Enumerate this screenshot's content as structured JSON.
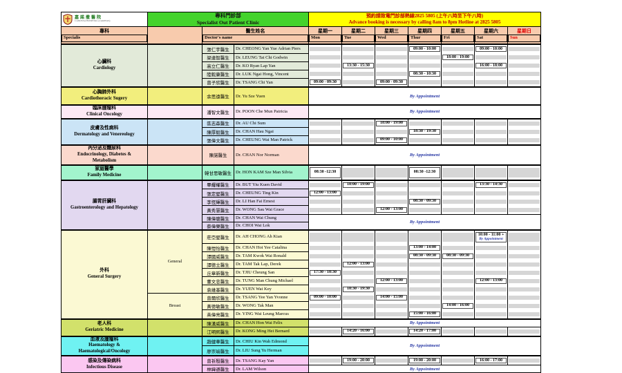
{
  "logo": {
    "zh": "嘉諾撒醫院",
    "en": "CANOSSA HOSPITAL (CARITAS)"
  },
  "banners": {
    "clinic_zh": "專科門診部",
    "clinic_en": "Specialist Out Patient Clinic",
    "hotline_zh": "預約請致電門診部熱線2825 5805 (上午八時至下午八時)",
    "hotline_en": "Advance booking is necessary by calling 8am to 8pm Hotline at 2825 5805"
  },
  "headers": {
    "specialty_zh": "專科",
    "specialty_en": "Specialis",
    "doctor_zh": "醫生姓名",
    "doctor_en": "Doctor's name",
    "days": [
      {
        "zh": "星期一",
        "en": "Mon"
      },
      {
        "zh": "星期二",
        "en": "Tue"
      },
      {
        "zh": "星期三",
        "en": "Wed"
      },
      {
        "zh": "星期四",
        "en": "Thur"
      },
      {
        "zh": "星期五",
        "en": "Fri"
      },
      {
        "zh": "星期六",
        "en": "Sat"
      },
      {
        "zh": "星期日",
        "en": "Sun"
      }
    ]
  },
  "by_appointment": "By Appointment",
  "sections": [
    {
      "color": "#e2ead9",
      "name_lines": [
        "心臟科",
        "Cardiology"
      ],
      "groups": [
        {
          "label": "",
          "rows": [
            {
              "zh": "張仁宇醫生",
              "en": "Dr. CHEONG Yan Yue Adrian Piers",
              "days": [
                "",
                "",
                "",
                "09:00 - 10:00",
                "",
                "09:00 - 10:00",
                ""
              ]
            },
            {
              "zh": "梁達智醫生",
              "en": "Dr. LEUNG Tat Chi Godwin",
              "days": [
                "",
                "",
                "",
                "",
                "18:00 - 19:00",
                "",
                ""
              ]
            },
            {
              "zh": "高立仁醫生",
              "en": "Dr. KO Ryan Lap Yan",
              "days": [
                "",
                "13:30 - 15:30",
                "",
                "",
                "",
                "16:00 - 18:00",
                ""
              ]
            },
            {
              "zh": "陸毅康醫生",
              "en": "Dr. LUK Ngai Hong, Vincent",
              "days": [
                "",
                "",
                "",
                "08:30 - 10:30",
                "",
                "",
                ""
              ]
            },
            {
              "zh": "曾子欣醫生",
              "en": "Dr. TSANG Chi Yan",
              "days": [
                "09:00 - 09:30",
                "",
                "09:00 - 09:30",
                "",
                "",
                "",
                ""
              ]
            }
          ]
        }
      ]
    },
    {
      "color": "#f2ee7d",
      "name_lines": [
        "心胸肺外科",
        "Cardiothoracic Sugery"
      ],
      "groups": [
        {
          "label": "",
          "rows": [
            {
              "zh": "余思遠醫生",
              "en": "Dr. Yu Sze Yuen",
              "appt": 1,
              "h": 26
            }
          ]
        }
      ]
    },
    {
      "color": "#fce8f4",
      "name_lines": [
        "臨床腫瘤科",
        "Clinical Oncology"
      ],
      "groups": [
        {
          "label": "",
          "rows": [
            {
              "zh": "潘智文醫生",
              "en": "Dr. POON Che Mun Patricia",
              "appt": 1,
              "h": 19
            }
          ]
        }
      ]
    },
    {
      "color": "#cbe4f6",
      "name_lines": [
        "皮膚及性病科",
        "Dermatology and Venereology"
      ],
      "groups": [
        {
          "label": "",
          "rows": [
            {
              "zh": "區志森醫生",
              "en": "Dr. AU Chi Sum",
              "days": [
                "",
                "",
                "18:00 - 19:00",
                "",
                "",
                "",
                ""
              ]
            },
            {
              "zh": "陳厚毅醫生",
              "en": "Dr. CHAN Hau Ngai",
              "days": [
                "",
                "",
                "",
                "18:30 - 19:30",
                "",
                "",
                ""
              ]
            },
            {
              "zh": "張偉文醫生",
              "en": "Dr. CHEUNG Wai Man Patrick",
              "days": [
                "",
                "",
                "09:00 - 10:00",
                "",
                "",
                "",
                ""
              ]
            }
          ]
        }
      ]
    },
    {
      "color": "#fbd9cd",
      "name_lines": [
        "內分泌及糖尿科",
        "Endocrinology, Diabetes &",
        "Metabolism"
      ],
      "groups": [
        {
          "label": "",
          "rows": [
            {
              "zh": "陳諾醫生",
              "en": "Dr. CHAN Nor Norman",
              "appt": 1,
              "h": 29
            }
          ]
        }
      ]
    },
    {
      "color": "#a2f4cd",
      "name_lines": [
        "家庭醫學",
        "Family Medicine"
      ],
      "groups": [
        {
          "label": "",
          "rows": [
            {
              "zh": "韓甘思敏醫生",
              "en": "Dr. HON KAM Sze Man Silvia",
              "h": 19,
              "days": [
                "08:30 -12:30",
                "",
                "",
                "08:30 -12:30",
                "",
                "",
                ""
              ]
            }
          ]
        }
      ]
    },
    {
      "color": "#e2d8f0",
      "name_lines": [
        "腸胃肝臟科",
        "Gastroenterology and Hepatology"
      ],
      "groups": [
        {
          "label": "",
          "rows": [
            {
              "zh": "畢耀權醫生",
              "en": "Dr. BUT Yiu Kuen David",
              "days": [
                "",
                "18:00 - 19:00",
                "",
                "",
                "",
                "13:30 - 14:30",
                ""
              ]
            },
            {
              "zh": "張定堅醫生",
              "en": "Dr. CHEUNG Ting Kin",
              "days": [
                "12:00 - 13:00",
                "",
                "",
                "",
                "",
                "",
                ""
              ]
            },
            {
              "zh": "李恆輝醫生",
              "en": "Dr. LI Han Fai Ernest",
              "days": [
                "",
                "",
                "",
                "08:30 - 09:30",
                "",
                "",
                ""
              ]
            },
            {
              "zh": "黃秀慧醫生",
              "en": "Dr. WONG Sau Wai Grace",
              "days": [
                "",
                "",
                "12:00 - 13:00",
                "",
                "",
                "",
                ""
              ]
            },
            {
              "zh": "陳偉聰醫生",
              "en": "Dr. CHAN Wai Chung",
              "appt": 2
            },
            {
              "zh": "蔡偉樂醫生",
              "en": "Dr. CHOI Wai Lok",
              "skip": true
            }
          ]
        }
      ]
    },
    {
      "color": "#fbf9d3",
      "name_lines": [
        "外科",
        "General Surgery"
      ],
      "groups": [
        {
          "label": "General",
          "rows": [
            {
              "zh": "莊亞堅醫生",
              "en": "Dr. AH CHONG Ah Kian",
              "h": 18,
              "days": [
                "",
                "",
                "",
                "",
                "",
                {
                  "t": "10:00 - 11:00 +",
                  "sub": "By Appointment"
                },
                ""
              ]
            },
            {
              "zh": "陳愷怡醫生",
              "en": "Dr. CHAN Hoi Yee Catalina",
              "days": [
                "",
                "",
                "",
                "13:00 - 14:00",
                "",
                "",
                ""
              ]
            },
            {
              "zh": "譚國威醫生",
              "en": "Dr. TAM Kwok Wai Ronald",
              "days": [
                "",
                "",
                "",
                "08:30 - 09:30",
                "08:30 - 09:30",
                "",
                ""
              ]
            },
            {
              "zh": "譚德立醫生",
              "en": "Dr. TAM Tak Lap, Derek",
              "days": [
                "",
                "12:00 - 13:00",
                "",
                "",
                "",
                "",
                ""
              ]
            },
            {
              "zh": "丘章新醫生",
              "en": "Dr. TJIU Cheung San",
              "days": [
                "17:30 - 18:30",
                "",
                "",
                "",
                "",
                "",
                ""
              ]
            },
            {
              "zh": "董文忠醫生",
              "en": "Dr. TUNG Man Chung Michael",
              "days": [
                "",
                "",
                "12:00 - 13:00",
                "",
                "",
                "12:00 - 13:00",
                ""
              ]
            },
            {
              "zh": "袁維基醫生",
              "en": "Dr. YUEN Wai Key",
              "days": [
                "",
                "18:30 - 19:30",
                "",
                "",
                "",
                "",
                ""
              ]
            }
          ]
        },
        {
          "label": "Breast",
          "rows": [
            {
              "zh": "曾爾欣醫生",
              "en": "Dr. TSANG Yee Yan Yvonne",
              "days": [
                "09:00 - 10:00",
                "",
                "14:00 - 15:00",
                "",
                "",
                "",
                ""
              ]
            },
            {
              "zh": "黃德敏醫生",
              "en": "Dr. WONG Tak Man",
              "days": [
                "",
                "",
                "",
                "",
                "14:00 - 16:00",
                "",
                ""
              ]
            },
            {
              "zh": "英偉亮醫生",
              "en": "Dr. YING Wai Leung Marcus",
              "days": [
                "",
                "",
                "",
                "15:00 - 16:00",
                "",
                "",
                ""
              ]
            }
          ]
        }
      ]
    },
    {
      "color": "#d2e16b",
      "name_lines": [
        "老人科",
        "Geriatric Medicine"
      ],
      "groups": [
        {
          "label": "",
          "rows": [
            {
              "zh": "陳漢威醫生",
              "en": "Dr. CHAN Hon Wai Felix",
              "appt": 1
            },
            {
              "zh": "江明熙醫生",
              "en": "Dr. KONG Ming Hei Bernard",
              "days": [
                "",
                "14:20 - 16:00",
                "",
                "14:20 - 17:00",
                "",
                "",
                ""
              ]
            }
          ]
        }
      ]
    },
    {
      "color": "#6ff2f2",
      "name_lines": [
        "血液及腫瘤科",
        "Haematology &",
        "Haematological/Oncology"
      ],
      "groups": [
        {
          "label": "",
          "rows": [
            {
              "zh": "趙健華醫生",
              "en": "Dr. CHIU Kin Wah Edmond",
              "appt": 2
            },
            {
              "zh": "廖崇瑜醫生",
              "en": "Dr. LIU Sung Yu Herman",
              "skip": true
            }
          ]
        }
      ]
    },
    {
      "color": "#fbc7f1",
      "name_lines": [
        "感染及傳染病科",
        "Infectious Disease"
      ],
      "groups": [
        {
          "label": "",
          "rows": [
            {
              "zh": "曾祈殷醫生",
              "en": "Dr. TSANG Kay Yan",
              "days": [
                "",
                "19:00 - 20:00",
                "",
                "19:00 - 20:00",
                "",
                "16:00 - 17:00",
                ""
              ]
            },
            {
              "zh": "林緯遜醫生",
              "en": "Dr. LAM Wilson",
              "appt": 1
            }
          ]
        }
      ]
    }
  ]
}
